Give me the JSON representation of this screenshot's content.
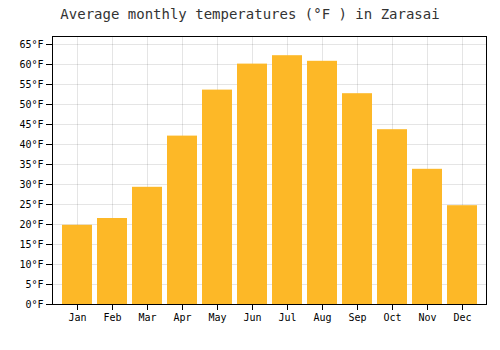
{
  "chart_data": {
    "type": "bar",
    "title": "Average monthly temperatures (°F ) in Zarasai",
    "categories": [
      "Jan",
      "Feb",
      "Mar",
      "Apr",
      "May",
      "Jun",
      "Jul",
      "Aug",
      "Sep",
      "Oct",
      "Nov",
      "Dec"
    ],
    "values": [
      19.8,
      21.5,
      29.3,
      42.1,
      53.6,
      60.1,
      62.2,
      60.8,
      52.7,
      43.7,
      33.8,
      24.7
    ],
    "color": "#FDB827",
    "ylim": [
      0,
      67
    ],
    "yticks": [
      {
        "value": 0,
        "label": "0°F"
      },
      {
        "value": 5,
        "label": "5°F"
      },
      {
        "value": 10,
        "label": "10°F"
      },
      {
        "value": 15,
        "label": "15°F"
      },
      {
        "value": 20,
        "label": "20°F"
      },
      {
        "value": 25,
        "label": "25°F"
      },
      {
        "value": 30,
        "label": "30°F"
      },
      {
        "value": 35,
        "label": "35°F"
      },
      {
        "value": 40,
        "label": "40°F"
      },
      {
        "value": 45,
        "label": "45°F"
      },
      {
        "value": 50,
        "label": "50°F"
      },
      {
        "value": 55,
        "label": "55°F"
      },
      {
        "value": 60,
        "label": "60°F"
      },
      {
        "value": 65,
        "label": "65°F"
      }
    ],
    "grid": true
  }
}
